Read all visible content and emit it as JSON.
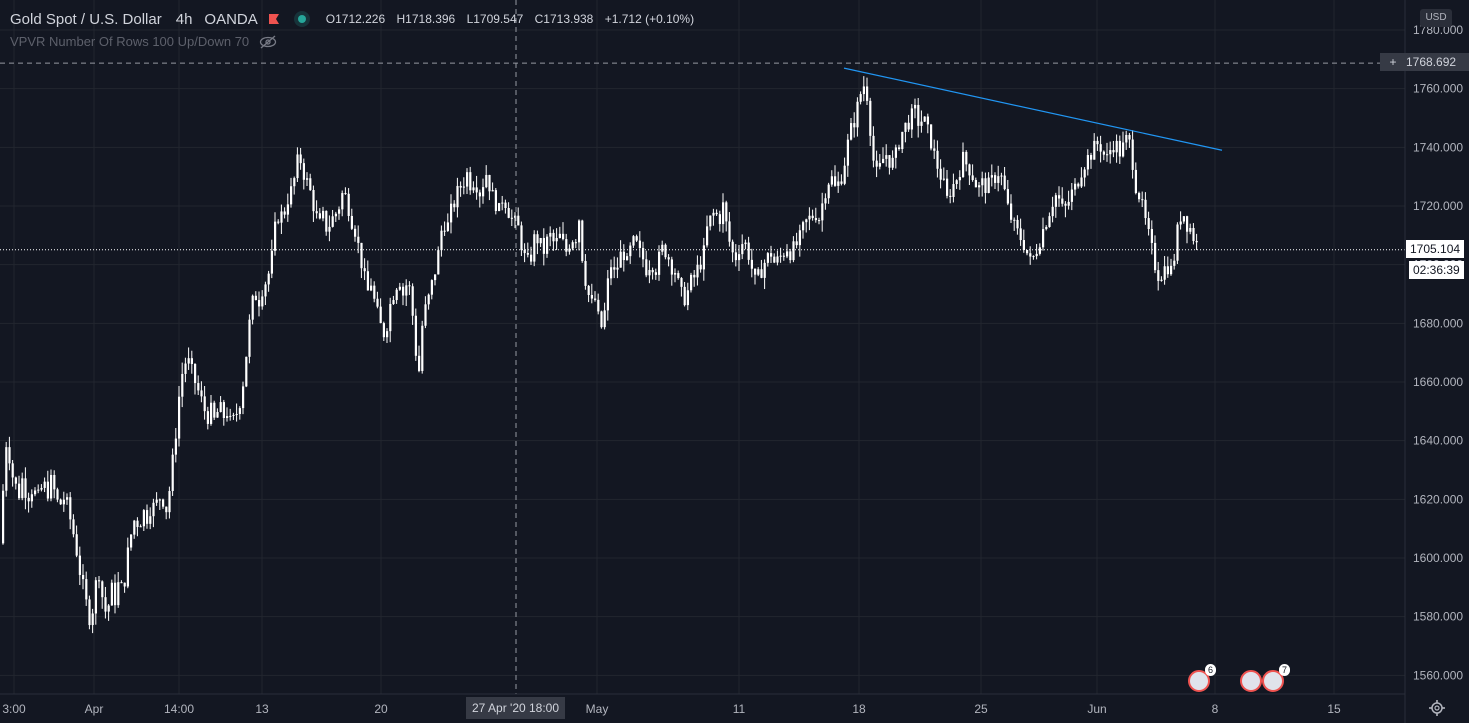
{
  "legend": {
    "symbol": "Gold Spot / U.S. Dollar",
    "separator": "·",
    "timeframe": "4h",
    "broker": "OANDA",
    "open": "O1712.226",
    "high": "H1718.396",
    "low": "L1709.547",
    "close": "C1713.938",
    "change": "+1.712 (+0.10%)"
  },
  "indicator": {
    "label": "VPVR Number Of Rows 100 Up/Down 70"
  },
  "currency": "USD",
  "crosshair": {
    "price_label": "1768.692",
    "time_label": "27 Apr '20   18:00"
  },
  "last_price": {
    "price_label": "1705.104",
    "countdown": "02:36:39"
  },
  "events": [
    {
      "count": "6"
    },
    {
      "count": ""
    },
    {
      "count": "7"
    }
  ],
  "colors": {
    "background": "#131722",
    "candle": "#ffffff",
    "trendline": "#2196f3",
    "grid": "#2a2e39"
  },
  "chart_data": {
    "type": "candlestick",
    "title": "Gold Spot / U.S. Dollar, 4h, OANDA",
    "xlabel": "",
    "ylabel": "",
    "ylim": [
      1553,
      1782
    ],
    "y_ticks": [
      "1780.000",
      "1760.000",
      "1740.000",
      "1720.000",
      "1700.000",
      "1680.000",
      "1660.000",
      "1640.000",
      "1620.000",
      "1600.000",
      "1580.000",
      "1560.000"
    ],
    "x_ticks": [
      "3:00",
      "Apr",
      "14:00",
      "13",
      "20",
      "May",
      "11",
      "18",
      "25",
      "Jun",
      "8",
      "15"
    ],
    "grid": true,
    "crosshair_price": 1768.692,
    "last_price": 1705.104,
    "trendline": {
      "from": {
        "date": "May 17",
        "price": 1767
      },
      "to": {
        "date": "Jun 8",
        "price": 1739
      }
    },
    "close_path": [
      [
        0,
        1605
      ],
      [
        3,
        1632
      ],
      [
        6,
        1642
      ],
      [
        10,
        1630
      ],
      [
        14,
        1625
      ],
      [
        18,
        1622
      ],
      [
        22,
        1628
      ],
      [
        26,
        1620
      ],
      [
        30,
        1624
      ],
      [
        34,
        1622
      ],
      [
        38,
        1620
      ],
      [
        42,
        1626
      ],
      [
        46,
        1622
      ],
      [
        50,
        1626
      ],
      [
        54,
        1622
      ],
      [
        58,
        1617
      ],
      [
        62,
        1621
      ],
      [
        66,
        1618
      ],
      [
        70,
        1612
      ],
      [
        74,
        1606
      ],
      [
        78,
        1597
      ],
      [
        82,
        1590
      ],
      [
        86,
        1583
      ],
      [
        90,
        1578
      ],
      [
        94,
        1590
      ],
      [
        98,
        1595
      ],
      [
        102,
        1585
      ],
      [
        106,
        1580
      ],
      [
        110,
        1590
      ],
      [
        114,
        1586
      ],
      [
        118,
        1592
      ],
      [
        122,
        1588
      ],
      [
        126,
        1600
      ],
      [
        130,
        1608
      ],
      [
        134,
        1614
      ],
      [
        138,
        1611
      ],
      [
        142,
        1616
      ],
      [
        146,
        1614
      ],
      [
        150,
        1618
      ],
      [
        154,
        1617
      ],
      [
        158,
        1621
      ],
      [
        162,
        1620
      ],
      [
        166,
        1616
      ],
      [
        170,
        1628
      ],
      [
        174,
        1640
      ],
      [
        178,
        1655
      ],
      [
        182,
        1665
      ],
      [
        186,
        1668
      ],
      [
        190,
        1664
      ],
      [
        194,
        1660
      ],
      [
        198,
        1656
      ],
      [
        202,
        1652
      ],
      [
        206,
        1648
      ],
      [
        210,
        1650
      ],
      [
        214,
        1646
      ],
      [
        218,
        1652
      ],
      [
        222,
        1648
      ],
      [
        226,
        1650
      ],
      [
        230,
        1645
      ],
      [
        234,
        1648
      ],
      [
        238,
        1652
      ],
      [
        242,
        1660
      ],
      [
        246,
        1672
      ],
      [
        250,
        1685
      ],
      [
        254,
        1690
      ],
      [
        258,
        1688
      ],
      [
        262,
        1693
      ],
      [
        266,
        1695
      ],
      [
        270,
        1700
      ],
      [
        274,
        1712
      ],
      [
        278,
        1718
      ],
      [
        282,
        1716
      ],
      [
        286,
        1722
      ],
      [
        290,
        1725
      ],
      [
        294,
        1730
      ],
      [
        298,
        1738
      ],
      [
        302,
        1732
      ],
      [
        306,
        1728
      ],
      [
        310,
        1724
      ],
      [
        314,
        1718
      ],
      [
        318,
        1713
      ],
      [
        322,
        1716
      ],
      [
        326,
        1712
      ],
      [
        330,
        1715
      ],
      [
        334,
        1717
      ],
      [
        338,
        1720
      ],
      [
        342,
        1725
      ],
      [
        346,
        1722
      ],
      [
        350,
        1716
      ],
      [
        354,
        1712
      ],
      [
        358,
        1705
      ],
      [
        362,
        1698
      ],
      [
        366,
        1690
      ],
      [
        370,
        1694
      ],
      [
        374,
        1686
      ],
      [
        378,
        1681
      ],
      [
        382,
        1676
      ],
      [
        386,
        1680
      ],
      [
        390,
        1688
      ],
      [
        394,
        1692
      ],
      [
        398,
        1696
      ],
      [
        402,
        1690
      ],
      [
        406,
        1694
      ],
      [
        410,
        1690
      ],
      [
        414,
        1672
      ],
      [
        418,
        1664
      ],
      [
        422,
        1683
      ],
      [
        426,
        1686
      ],
      [
        430,
        1692
      ],
      [
        434,
        1698
      ],
      [
        438,
        1705
      ],
      [
        442,
        1716
      ],
      [
        446,
        1712
      ],
      [
        450,
        1718
      ],
      [
        454,
        1722
      ],
      [
        458,
        1726
      ],
      [
        462,
        1728
      ],
      [
        466,
        1731
      ],
      [
        470,
        1727
      ],
      [
        474,
        1730
      ],
      [
        478,
        1724
      ],
      [
        482,
        1728
      ],
      [
        486,
        1732
      ],
      [
        490,
        1724
      ],
      [
        494,
        1722
      ],
      [
        498,
        1718
      ],
      [
        502,
        1724
      ],
      [
        506,
        1720
      ],
      [
        510,
        1716
      ],
      [
        514,
        1714
      ],
      [
        518,
        1712
      ],
      [
        522,
        1704
      ],
      [
        526,
        1700
      ],
      [
        530,
        1703
      ],
      [
        534,
        1710
      ],
      [
        538,
        1708
      ],
      [
        542,
        1704
      ],
      [
        546,
        1708
      ],
      [
        550,
        1710
      ],
      [
        554,
        1706
      ],
      [
        558,
        1710
      ],
      [
        562,
        1707
      ],
      [
        566,
        1704
      ],
      [
        570,
        1710
      ],
      [
        574,
        1708
      ],
      [
        578,
        1716
      ],
      [
        582,
        1700
      ],
      [
        586,
        1692
      ],
      [
        590,
        1686
      ],
      [
        594,
        1688
      ],
      [
        598,
        1680
      ],
      [
        602,
        1678
      ],
      [
        606,
        1692
      ],
      [
        610,
        1700
      ],
      [
        614,
        1696
      ],
      [
        618,
        1702
      ],
      [
        622,
        1705
      ],
      [
        626,
        1700
      ],
      [
        630,
        1706
      ],
      [
        634,
        1708
      ],
      [
        638,
        1704
      ],
      [
        642,
        1702
      ],
      [
        646,
        1698
      ],
      [
        650,
        1702
      ],
      [
        654,
        1698
      ],
      [
        658,
        1702
      ],
      [
        662,
        1706
      ],
      [
        666,
        1704
      ],
      [
        670,
        1700
      ],
      [
        674,
        1698
      ],
      [
        678,
        1692
      ],
      [
        682,
        1688
      ],
      [
        686,
        1690
      ],
      [
        690,
        1694
      ],
      [
        694,
        1696
      ],
      [
        698,
        1700
      ],
      [
        702,
        1702
      ],
      [
        706,
        1712
      ],
      [
        710,
        1716
      ],
      [
        714,
        1718
      ],
      [
        718,
        1715
      ],
      [
        722,
        1720
      ],
      [
        726,
        1712
      ],
      [
        730,
        1705
      ],
      [
        734,
        1702
      ],
      [
        738,
        1706
      ],
      [
        742,
        1708
      ],
      [
        746,
        1706
      ],
      [
        750,
        1700
      ],
      [
        754,
        1694
      ],
      [
        758,
        1696
      ],
      [
        762,
        1700
      ],
      [
        766,
        1702
      ],
      [
        770,
        1704
      ],
      [
        774,
        1700
      ],
      [
        778,
        1702
      ],
      [
        782,
        1704
      ],
      [
        786,
        1706
      ],
      [
        790,
        1704
      ],
      [
        794,
        1706
      ],
      [
        798,
        1708
      ],
      [
        802,
        1712
      ],
      [
        806,
        1715
      ],
      [
        810,
        1716
      ],
      [
        814,
        1718
      ],
      [
        818,
        1716
      ],
      [
        822,
        1722
      ],
      [
        826,
        1728
      ],
      [
        830,
        1730
      ],
      [
        834,
        1726
      ],
      [
        838,
        1728
      ],
      [
        842,
        1732
      ],
      [
        846,
        1740
      ],
      [
        850,
        1746
      ],
      [
        854,
        1750
      ],
      [
        858,
        1756
      ],
      [
        862,
        1762
      ],
      [
        866,
        1758
      ],
      [
        870,
        1744
      ],
      [
        874,
        1730
      ],
      [
        878,
        1732
      ],
      [
        882,
        1736
      ],
      [
        886,
        1738
      ],
      [
        890,
        1734
      ],
      [
        894,
        1736
      ],
      [
        898,
        1742
      ],
      [
        902,
        1746
      ],
      [
        906,
        1748
      ],
      [
        910,
        1750
      ],
      [
        914,
        1752
      ],
      [
        918,
        1748
      ],
      [
        922,
        1750
      ],
      [
        926,
        1746
      ],
      [
        930,
        1742
      ],
      [
        934,
        1736
      ],
      [
        938,
        1732
      ],
      [
        942,
        1728
      ],
      [
        946,
        1722
      ],
      [
        950,
        1726
      ],
      [
        954,
        1728
      ],
      [
        958,
        1732
      ],
      [
        962,
        1736
      ],
      [
        966,
        1734
      ],
      [
        970,
        1732
      ],
      [
        974,
        1728
      ],
      [
        978,
        1726
      ],
      [
        982,
        1728
      ],
      [
        986,
        1726
      ],
      [
        990,
        1728
      ],
      [
        994,
        1730
      ],
      [
        998,
        1732
      ],
      [
        1002,
        1728
      ],
      [
        1006,
        1720
      ],
      [
        1010,
        1716
      ],
      [
        1014,
        1712
      ],
      [
        1018,
        1710
      ],
      [
        1022,
        1708
      ],
      [
        1026,
        1704
      ],
      [
        1030,
        1700
      ],
      [
        1034,
        1704
      ],
      [
        1038,
        1708
      ],
      [
        1042,
        1712
      ],
      [
        1046,
        1716
      ],
      [
        1050,
        1720
      ],
      [
        1054,
        1724
      ],
      [
        1058,
        1722
      ],
      [
        1062,
        1718
      ],
      [
        1066,
        1720
      ],
      [
        1070,
        1724
      ],
      [
        1074,
        1726
      ],
      [
        1078,
        1730
      ],
      [
        1082,
        1734
      ],
      [
        1086,
        1736
      ],
      [
        1090,
        1738
      ],
      [
        1094,
        1740
      ],
      [
        1098,
        1742
      ],
      [
        1102,
        1738
      ],
      [
        1106,
        1736
      ],
      [
        1110,
        1740
      ],
      [
        1114,
        1742
      ],
      [
        1118,
        1738
      ],
      [
        1122,
        1740
      ],
      [
        1126,
        1743
      ],
      [
        1130,
        1740
      ],
      [
        1134,
        1728
      ],
      [
        1138,
        1724
      ],
      [
        1142,
        1718
      ],
      [
        1146,
        1712
      ],
      [
        1150,
        1706
      ],
      [
        1154,
        1700
      ],
      [
        1158,
        1696
      ],
      [
        1162,
        1698
      ],
      [
        1166,
        1700
      ],
      [
        1170,
        1698
      ],
      [
        1174,
        1704
      ],
      [
        1178,
        1716
      ],
      [
        1182,
        1718
      ],
      [
        1186,
        1714
      ],
      [
        1190,
        1712
      ],
      [
        1194,
        1708
      ],
      [
        1198,
        1705
      ]
    ]
  }
}
